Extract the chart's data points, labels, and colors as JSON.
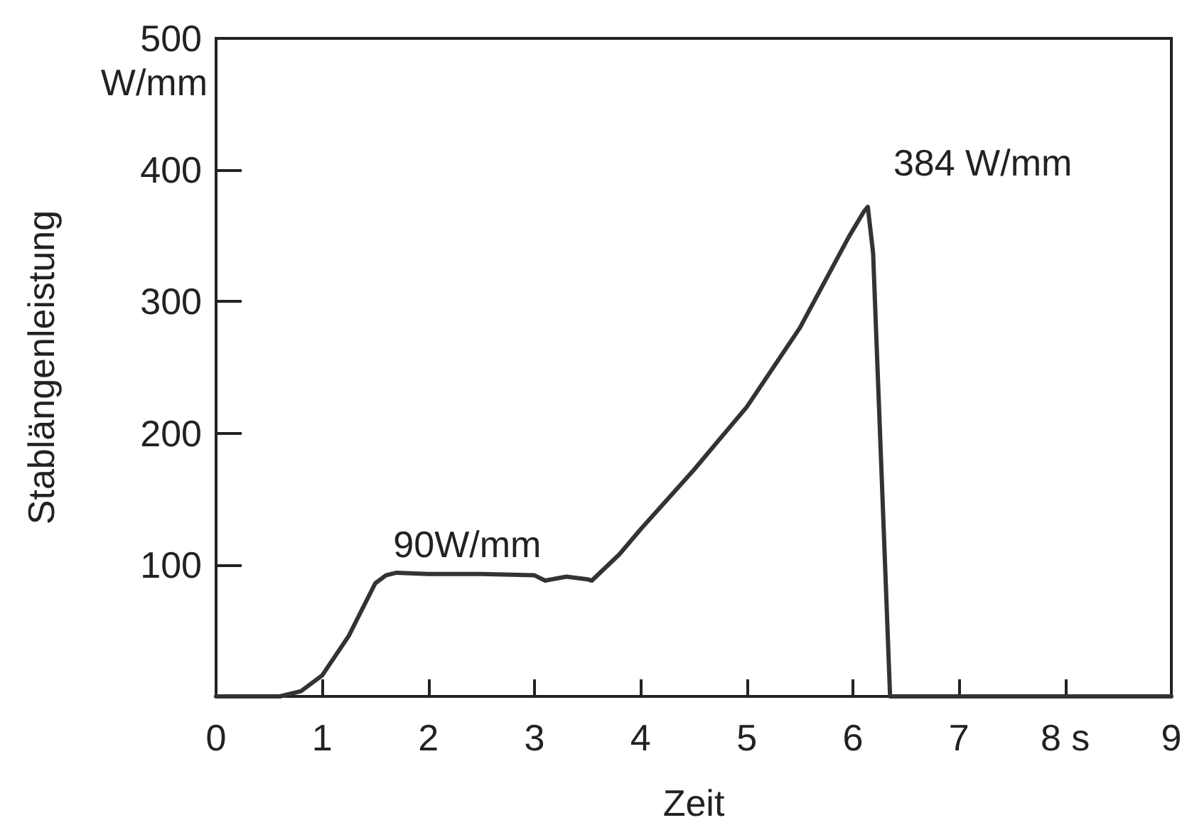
{
  "chart_data": {
    "type": "line",
    "xlabel": "Zeit",
    "ylabel": "Stablängenleistung",
    "x": [
      0,
      0.3,
      0.6,
      0.8,
      1.0,
      1.25,
      1.5,
      1.6,
      1.7,
      2.0,
      2.5,
      3.0,
      3.1,
      3.3,
      3.5,
      3.54,
      3.8,
      4.0,
      4.5,
      5.0,
      5.5,
      5.96,
      6.1,
      6.14,
      6.19,
      6.29,
      6.35,
      7,
      8,
      9
    ],
    "series": [
      {
        "color": "#333333",
        "values": [
          0,
          0,
          0,
          4,
          16,
          46,
          86,
          92,
          94,
          93,
          93,
          92,
          88,
          91,
          89,
          88,
          108,
          127,
          172,
          220,
          280,
          349,
          368,
          372,
          337,
          127,
          0,
          0,
          0,
          0
        ]
      }
    ],
    "xlim": [
      0,
      9
    ],
    "xticks": [
      0,
      1,
      2,
      3,
      4,
      5,
      6,
      7,
      {
        "value": 8,
        "label": "8 s"
      },
      9
    ],
    "ylim": [
      0,
      500
    ],
    "yticks": [
      100,
      200,
      300,
      400,
      500
    ],
    "grid": false,
    "marker": "none",
    "line_style": "solid",
    "annotations": [
      "W/mm",
      {
        "text": "90W/mm",
        "x": 2.5,
        "y": 93
      },
      {
        "text": "384 W/mm",
        "x": 6.14,
        "y": 372
      }
    ]
  }
}
